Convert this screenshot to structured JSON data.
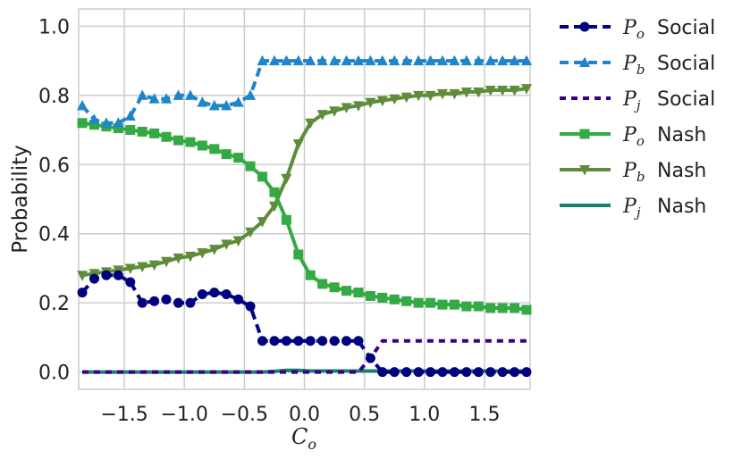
{
  "chart_data": {
    "type": "line",
    "xlabel": "C",
    "xlabel_sub": "o",
    "ylabel": "Probability",
    "xlim": [
      -1.88,
      1.88
    ],
    "ylim": [
      -0.05,
      1.05
    ],
    "xticks": [
      "−1.5",
      "−1.0",
      "−0.5",
      "0.0",
      "0.5",
      "1.0",
      "1.5"
    ],
    "xtick_values": [
      -1.5,
      -1.0,
      -0.5,
      0.0,
      0.5,
      1.0,
      1.5
    ],
    "yticks": [
      "0.0",
      "0.2",
      "0.4",
      "0.6",
      "0.8",
      "1.0"
    ],
    "ytick_values": [
      0.0,
      0.2,
      0.4,
      0.6,
      0.8,
      1.0
    ],
    "grid": true,
    "legend_position": "outside-right",
    "x": [
      -1.85,
      -1.75,
      -1.65,
      -1.55,
      -1.45,
      -1.35,
      -1.25,
      -1.15,
      -1.05,
      -0.95,
      -0.85,
      -0.75,
      -0.65,
      -0.55,
      -0.45,
      -0.35,
      -0.25,
      -0.15,
      -0.05,
      0.05,
      0.15,
      0.25,
      0.35,
      0.45,
      0.55,
      0.65,
      0.75,
      0.85,
      0.95,
      1.05,
      1.15,
      1.25,
      1.35,
      1.45,
      1.55,
      1.65,
      1.75,
      1.85
    ],
    "series": [
      {
        "name": "Social",
        "label_sym": "P",
        "label_sub": "o",
        "color": "#000080",
        "dash": "dashed",
        "marker": "circle",
        "values": [
          0.23,
          0.27,
          0.28,
          0.28,
          0.26,
          0.2,
          0.205,
          0.21,
          0.2,
          0.2,
          0.225,
          0.23,
          0.225,
          0.21,
          0.19,
          0.09,
          0.09,
          0.09,
          0.09,
          0.09,
          0.09,
          0.09,
          0.09,
          0.09,
          0.04,
          0.0,
          0.0,
          0.0,
          0.0,
          0.0,
          0.0,
          0.0,
          0.0,
          0.0,
          0.0,
          0.0,
          0.0,
          0.0
        ]
      },
      {
        "name": "Social",
        "label_sym": "P",
        "label_sub": "b",
        "color": "#1f85c9",
        "dash": "dashed",
        "marker": "triangle-up",
        "values": [
          0.77,
          0.73,
          0.72,
          0.72,
          0.74,
          0.8,
          0.79,
          0.79,
          0.8,
          0.8,
          0.78,
          0.77,
          0.77,
          0.78,
          0.8,
          0.9,
          0.9,
          0.9,
          0.9,
          0.9,
          0.9,
          0.9,
          0.9,
          0.9,
          0.9,
          0.9,
          0.9,
          0.9,
          0.9,
          0.9,
          0.9,
          0.9,
          0.9,
          0.9,
          0.9,
          0.9,
          0.9,
          0.9
        ]
      },
      {
        "name": "Social",
        "label_sym": "P",
        "label_sub": "j",
        "color": "#3b0080",
        "dash": "dotted",
        "marker": "none",
        "values": [
          0.0,
          0.0,
          0.0,
          0.0,
          0.0,
          0.0,
          0.0,
          0.0,
          0.0,
          0.0,
          0.0,
          0.0,
          0.0,
          0.0,
          0.0,
          0.0,
          0.0,
          0.0,
          0.0,
          0.0,
          0.0,
          0.0,
          0.0,
          0.0,
          0.04,
          0.09,
          0.09,
          0.09,
          0.09,
          0.09,
          0.09,
          0.09,
          0.09,
          0.09,
          0.09,
          0.09,
          0.09,
          0.09
        ]
      },
      {
        "name": "Nash",
        "label_sym": "P",
        "label_sub": "o",
        "color": "#33aa44",
        "dash": "solid",
        "marker": "square",
        "values": [
          0.72,
          0.715,
          0.71,
          0.705,
          0.7,
          0.695,
          0.69,
          0.68,
          0.67,
          0.665,
          0.655,
          0.645,
          0.63,
          0.62,
          0.595,
          0.565,
          0.52,
          0.44,
          0.34,
          0.28,
          0.255,
          0.245,
          0.235,
          0.23,
          0.22,
          0.215,
          0.21,
          0.205,
          0.2,
          0.2,
          0.195,
          0.195,
          0.19,
          0.19,
          0.185,
          0.185,
          0.185,
          0.18
        ]
      },
      {
        "name": "Nash",
        "label_sym": "P",
        "label_sub": "b",
        "color": "#5e8c38",
        "dash": "solid",
        "marker": "triangle-down",
        "values": [
          0.28,
          0.285,
          0.29,
          0.295,
          0.3,
          0.305,
          0.31,
          0.32,
          0.33,
          0.335,
          0.345,
          0.355,
          0.37,
          0.38,
          0.405,
          0.435,
          0.48,
          0.56,
          0.66,
          0.72,
          0.745,
          0.755,
          0.765,
          0.77,
          0.78,
          0.785,
          0.79,
          0.795,
          0.8,
          0.8,
          0.805,
          0.805,
          0.81,
          0.81,
          0.815,
          0.815,
          0.815,
          0.82
        ]
      },
      {
        "name": "Nash",
        "label_sym": "P",
        "label_sub": "j",
        "color": "#138070",
        "dash": "solid",
        "marker": "none",
        "values": [
          0.0,
          0.0,
          0.0,
          0.0,
          0.0,
          0.0,
          0.0,
          0.0,
          0.0,
          0.0,
          0.0,
          0.0,
          0.0,
          0.0,
          0.0,
          0.0,
          0.002,
          0.005,
          0.005,
          0.003,
          0.003,
          0.003,
          0.003,
          0.003,
          0.003,
          0.003,
          0.003,
          0.003,
          0.003,
          0.003,
          0.003,
          0.003,
          0.003,
          0.003,
          0.003,
          0.003,
          0.003,
          0.003
        ]
      }
    ]
  }
}
